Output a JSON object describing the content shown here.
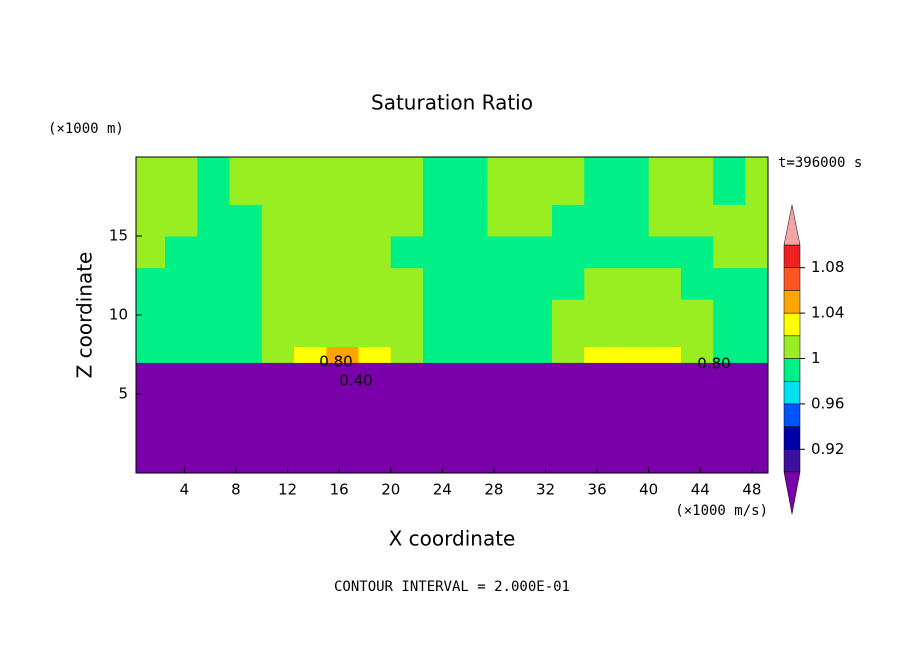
{
  "chart_data": {
    "type": "filled-contour",
    "title": "Saturation Ratio",
    "x_label": "X coordinate",
    "y_label": "Z coordinate",
    "x_unit": "(×1000 m/s)",
    "y_unit": "(×1000 m)",
    "time_label": "t=396000 s",
    "footer": "CONTOUR INTERVAL = 2.000E-01",
    "annotations": [
      "0.80",
      "0.40",
      "0.80"
    ],
    "x": [
      1.25,
      3.75,
      6.25,
      8.75,
      11.25,
      13.75,
      16.25,
      18.75,
      21.25,
      23.75,
      26.25,
      28.75,
      31.25,
      33.75,
      36.25,
      38.75,
      41.25,
      43.75,
      46.25,
      48.75
    ],
    "y": [
      1,
      3,
      5,
      6.5,
      7.5,
      8.5,
      10,
      12,
      14,
      16,
      18,
      19.5
    ],
    "z": [
      [
        0.2,
        0.2,
        0.2,
        0.2,
        0.2,
        0.2,
        0.2,
        0.2,
        0.2,
        0.2,
        0.2,
        0.2,
        0.2,
        0.2,
        0.2,
        0.2,
        0.2,
        0.2,
        0.2,
        0.2
      ],
      [
        0.3,
        0.3,
        0.3,
        0.3,
        0.3,
        0.3,
        0.3,
        0.3,
        0.3,
        0.3,
        0.3,
        0.3,
        0.3,
        0.3,
        0.3,
        0.3,
        0.3,
        0.3,
        0.3,
        0.3
      ],
      [
        0.45,
        0.45,
        0.45,
        0.45,
        0.45,
        0.45,
        0.45,
        0.45,
        0.45,
        0.45,
        0.45,
        0.45,
        0.45,
        0.45,
        0.45,
        0.45,
        0.45,
        0.45,
        0.45,
        0.45
      ],
      [
        0.75,
        0.75,
        0.75,
        0.75,
        0.75,
        0.75,
        0.75,
        0.75,
        0.75,
        0.75,
        0.75,
        0.75,
        0.75,
        0.75,
        0.75,
        0.75,
        0.75,
        0.75,
        0.75,
        0.75
      ],
      [
        0.99,
        0.99,
        0.99,
        0.99,
        1.01,
        1.03,
        1.05,
        1.03,
        1.01,
        0.99,
        0.99,
        0.99,
        0.99,
        1.01,
        1.03,
        1.03,
        1.03,
        1.01,
        0.99,
        0.99
      ],
      [
        0.99,
        0.99,
        0.99,
        0.99,
        1.01,
        1.01,
        1.01,
        1.01,
        1.01,
        0.99,
        0.99,
        0.99,
        0.99,
        1.01,
        1.01,
        1.01,
        1.01,
        1.01,
        0.99,
        0.99
      ],
      [
        0.99,
        0.99,
        0.99,
        0.99,
        1.01,
        1.01,
        1.01,
        1.01,
        1.01,
        0.99,
        0.99,
        0.99,
        0.99,
        1.01,
        1.01,
        1.01,
        1.01,
        1.01,
        0.99,
        0.99
      ],
      [
        0.99,
        0.99,
        0.99,
        0.99,
        1.01,
        1.01,
        1.01,
        1.01,
        1.01,
        0.99,
        0.99,
        0.99,
        0.99,
        0.99,
        1.01,
        1.01,
        1.01,
        0.99,
        0.99,
        0.99
      ],
      [
        1.01,
        0.99,
        0.99,
        0.99,
        1.01,
        1.01,
        1.01,
        1.01,
        0.99,
        0.99,
        0.99,
        0.99,
        0.99,
        0.99,
        0.99,
        0.99,
        0.99,
        0.99,
        1.01,
        1.01
      ],
      [
        1.01,
        1.01,
        0.99,
        0.99,
        1.01,
        1.01,
        1.01,
        1.01,
        1.01,
        0.99,
        0.99,
        1.01,
        1.01,
        0.99,
        0.99,
        0.99,
        1.01,
        1.01,
        1.01,
        1.01
      ],
      [
        1.01,
        1.01,
        0.99,
        1.01,
        1.01,
        1.01,
        1.01,
        1.01,
        1.01,
        0.99,
        0.99,
        1.01,
        1.01,
        1.01,
        0.99,
        0.99,
        1.01,
        1.01,
        0.99,
        1.01
      ],
      [
        1.01,
        1.01,
        0.99,
        1.01,
        1.01,
        1.01,
        1.01,
        1.01,
        1.01,
        0.99,
        0.99,
        1.01,
        1.01,
        1.01,
        0.99,
        0.99,
        1.01,
        1.01,
        0.99,
        1.01
      ]
    ],
    "xlim": [
      0.25,
      49.25
    ],
    "ylim": [
      0,
      20
    ],
    "xticks": [
      4,
      8,
      12,
      16,
      20,
      24,
      28,
      32,
      36,
      40,
      44,
      48
    ],
    "yticks": [
      5,
      10,
      15
    ],
    "colorbar": {
      "levels": [
        0.9,
        0.92,
        0.94,
        0.96,
        0.98,
        1,
        1.02,
        1.04,
        1.06,
        1.08,
        1.1
      ],
      "colors": [
        "#7a00aa",
        "#3d0f9e",
        "#0000aa",
        "#0055ff",
        "#00e0f0",
        "#00f088",
        "#99ee22",
        "#ffff00",
        "#ffa500",
        "#ff5522",
        "#ee2222",
        "#f4a4a4"
      ],
      "ticks": [
        0.92,
        0.96,
        1,
        1.04,
        1.08
      ]
    }
  }
}
